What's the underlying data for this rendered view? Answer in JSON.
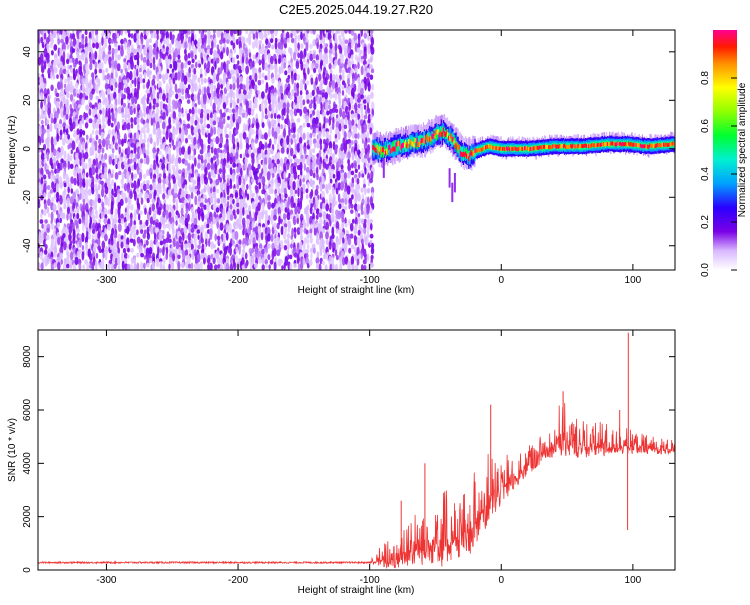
{
  "title": "C2E5.2025.044.19.27.R20",
  "colors": {
    "snr_line": "#ee3333",
    "frame": "#000000"
  },
  "chart_data": [
    {
      "type": "heatmap",
      "xlabel": "Height of straight line (km)",
      "ylabel": "Frequency (Hz)",
      "xlim": [
        -352,
        132
      ],
      "ylim": [
        -50,
        49
      ],
      "x_ticks": [
        -300,
        -200,
        -100,
        0,
        100
      ],
      "x_tick_labels": [
        "-300",
        "-200",
        "-100",
        "0",
        "100"
      ],
      "y_ticks": [
        -40,
        -20,
        0,
        20,
        40
      ],
      "y_tick_labels": [
        "-40",
        "-20",
        "0",
        "20",
        "40"
      ],
      "noise_region": [
        -352,
        -98
      ],
      "signal_track": [
        {
          "x": -98,
          "y": 0
        },
        {
          "x": -90,
          "y": -1
        },
        {
          "x": -80,
          "y": 1
        },
        {
          "x": -70,
          "y": 2
        },
        {
          "x": -60,
          "y": 3
        },
        {
          "x": -50,
          "y": 6
        },
        {
          "x": -45,
          "y": 7
        },
        {
          "x": -40,
          "y": 5
        },
        {
          "x": -35,
          "y": 2
        },
        {
          "x": -30,
          "y": -2
        },
        {
          "x": -25,
          "y": -3
        },
        {
          "x": -20,
          "y": -1
        },
        {
          "x": -15,
          "y": 0
        },
        {
          "x": -10,
          "y": 1
        },
        {
          "x": 0,
          "y": 0
        },
        {
          "x": 20,
          "y": 0
        },
        {
          "x": 40,
          "y": 1
        },
        {
          "x": 60,
          "y": 1
        },
        {
          "x": 80,
          "y": 2
        },
        {
          "x": 95,
          "y": 2
        },
        {
          "x": 110,
          "y": 1
        },
        {
          "x": 132,
          "y": 2
        }
      ],
      "colorbar": {
        "label": "Normalized spectral amplitude",
        "range": [
          0,
          1
        ],
        "ticks": [
          0,
          0.2,
          0.4,
          0.6,
          0.8
        ],
        "tick_labels": [
          "0.0",
          "0.2",
          "0.4",
          "0.6",
          "0.8"
        ]
      },
      "grid": false
    },
    {
      "type": "line",
      "xlabel": "Height of straight line (km)",
      "ylabel": "SNR (10 * v/v)",
      "xlim": [
        -352,
        132
      ],
      "ylim": [
        0,
        9000
      ],
      "x_ticks": [
        -300,
        -200,
        -100,
        0,
        100
      ],
      "x_tick_labels": [
        "-300",
        "-200",
        "-100",
        "0",
        "100"
      ],
      "y_ticks": [
        0,
        2000,
        4000,
        6000,
        8000
      ],
      "y_tick_labels": [
        "0",
        "2000",
        "4000",
        "6000",
        "8000"
      ],
      "series": [
        {
          "envelope": [
            {
              "x": -352,
              "base": 280,
              "spread": 60
            },
            {
              "x": -100,
              "base": 280,
              "spread": 60
            },
            {
              "x": -85,
              "base": 400,
              "spread": 800
            },
            {
              "x": -70,
              "base": 700,
              "spread": 1200
            },
            {
              "x": -55,
              "base": 900,
              "spread": 1400
            },
            {
              "x": -45,
              "base": 1000,
              "spread": 1800
            },
            {
              "x": -35,
              "base": 1100,
              "spread": 1300
            },
            {
              "x": -25,
              "base": 1200,
              "spread": 1600
            },
            {
              "x": -15,
              "base": 2200,
              "spread": 1800
            },
            {
              "x": 0,
              "base": 3000,
              "spread": 1200
            },
            {
              "x": 20,
              "base": 3900,
              "spread": 700
            },
            {
              "x": 35,
              "base": 4500,
              "spread": 600
            },
            {
              "x": 45,
              "base": 4900,
              "spread": 1300
            },
            {
              "x": 55,
              "base": 4700,
              "spread": 1000
            },
            {
              "x": 70,
              "base": 4600,
              "spread": 800
            },
            {
              "x": 90,
              "base": 4700,
              "spread": 700
            },
            {
              "x": 100,
              "base": 4600,
              "spread": 500
            },
            {
              "x": 132,
              "base": 4500,
              "spread": 300
            }
          ],
          "spikes": [
            {
              "x": 96.5,
              "y": 8900
            },
            {
              "x": 96,
              "y": 1500
            },
            {
              "x": 47,
              "y": 6700
            },
            {
              "x": 90,
              "y": 6000
            },
            {
              "x": -8,
              "y": 6200
            },
            {
              "x": -58,
              "y": 4000
            },
            {
              "x": -76,
              "y": 2600
            }
          ]
        }
      ],
      "grid": false
    }
  ]
}
